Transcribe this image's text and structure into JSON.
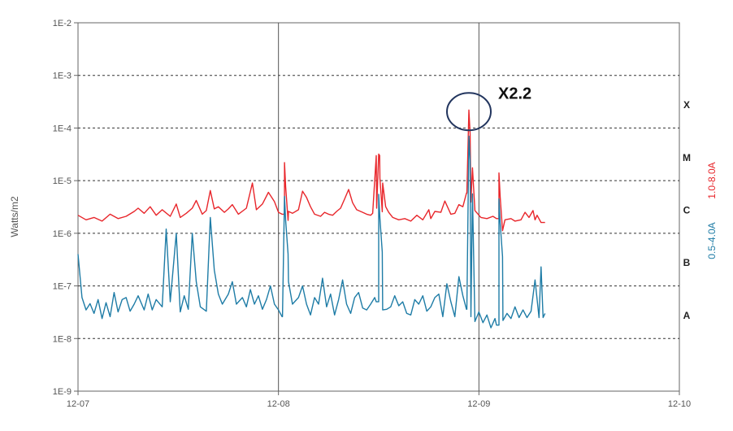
{
  "chart_data": {
    "type": "line",
    "ylabel": "Watts/m2",
    "yscale": "log",
    "ylim": [
      1e-09,
      0.01
    ],
    "y_tick_labels": [
      "1E-9",
      "1E-8",
      "1E-7",
      "1E-6",
      "1E-5",
      "1E-4",
      "1E-3",
      "1E-2"
    ],
    "xlim": [
      "12-07",
      "12-10"
    ],
    "x_tick_labels": [
      "12-07",
      "12-08",
      "12-09",
      "12-10"
    ],
    "grid": {
      "horizontal": "dashed",
      "vertical": "solid at day boundaries"
    },
    "flare_classes": [
      {
        "label": "X",
        "level": 0.0001
      },
      {
        "label": "M",
        "level": 1e-05
      },
      {
        "label": "C",
        "level": 1e-06
      },
      {
        "label": "B",
        "level": 1e-07
      },
      {
        "label": "A",
        "level": 1e-08
      }
    ],
    "series": [
      {
        "name": "1.0-8.0A",
        "color": "#e8262b",
        "x_unit": "days since 12-07 00:00",
        "points": [
          [
            0.0,
            2.2e-06
          ],
          [
            0.04,
            1.8e-06
          ],
          [
            0.08,
            2e-06
          ],
          [
            0.12,
            1.7e-06
          ],
          [
            0.16,
            2.3e-06
          ],
          [
            0.2,
            1.9e-06
          ],
          [
            0.24,
            2.1e-06
          ],
          [
            0.28,
            2.6e-06
          ],
          [
            0.3,
            3e-06
          ],
          [
            0.33,
            2.4e-06
          ],
          [
            0.36,
            3.2e-06
          ],
          [
            0.39,
            2.2e-06
          ],
          [
            0.42,
            2.8e-06
          ],
          [
            0.46,
            2.1e-06
          ],
          [
            0.49,
            3.6e-06
          ],
          [
            0.51,
            2e-06
          ],
          [
            0.54,
            2.4e-06
          ],
          [
            0.57,
            3e-06
          ],
          [
            0.59,
            4.2e-06
          ],
          [
            0.62,
            2.3e-06
          ],
          [
            0.64,
            2.7e-06
          ],
          [
            0.66,
            6.5e-06
          ],
          [
            0.68,
            2.9e-06
          ],
          [
            0.7,
            3.2e-06
          ],
          [
            0.73,
            2.5e-06
          ],
          [
            0.75,
            2.9e-06
          ],
          [
            0.77,
            3.5e-06
          ],
          [
            0.8,
            2.3e-06
          ],
          [
            0.84,
            3e-06
          ],
          [
            0.87,
            9e-06
          ],
          [
            0.89,
            2.8e-06
          ],
          [
            0.92,
            3.6e-06
          ],
          [
            0.95,
            6e-06
          ],
          [
            0.98,
            4e-06
          ],
          [
            1.0,
            2.5e-06
          ],
          [
            1.03,
            2.3e-06
          ],
          [
            1.05,
            2.6e-06
          ],
          [
            1.07,
            2.4e-06
          ],
          [
            1.1,
            2.8e-06
          ],
          [
            1.12,
            6.3e-06
          ],
          [
            1.14,
            4.8e-06
          ],
          [
            1.16,
            3.2e-06
          ],
          [
            1.18,
            2.3e-06
          ],
          [
            1.21,
            2.1e-06
          ],
          [
            1.23,
            2.5e-06
          ],
          [
            1.25,
            2.3e-06
          ],
          [
            1.27,
            2.2e-06
          ],
          [
            1.29,
            2.6e-06
          ],
          [
            1.31,
            3e-06
          ],
          [
            1.33,
            4.5e-06
          ],
          [
            1.35,
            6.8e-06
          ],
          [
            1.37,
            3.8e-06
          ],
          [
            1.39,
            2.8e-06
          ],
          [
            1.42,
            2.5e-06
          ],
          [
            1.44,
            2.3e-06
          ],
          [
            1.46,
            2.2e-06
          ],
          [
            1.47,
            2.4e-06
          ],
          [
            1.49,
            3e-06
          ],
          [
            1.505,
            3e-05
          ],
          [
            1.52,
            9e-06
          ],
          [
            1.535,
            3.2e-06
          ],
          [
            1.55,
            2.5e-06
          ],
          [
            1.57,
            2e-06
          ],
          [
            1.6,
            1.8e-06
          ],
          [
            1.63,
            1.9e-06
          ],
          [
            1.66,
            1.7e-06
          ],
          [
            1.69,
            2.2e-06
          ],
          [
            1.72,
            1.8e-06
          ],
          [
            1.75,
            2.8e-06
          ],
          [
            1.76,
            1.9e-06
          ],
          [
            1.78,
            2.6e-06
          ],
          [
            1.81,
            2.5e-06
          ],
          [
            1.83,
            4.1e-06
          ],
          [
            1.86,
            2.3e-06
          ],
          [
            1.88,
            2.4e-06
          ],
          [
            1.9,
            3.5e-06
          ],
          [
            1.92,
            3.2e-06
          ],
          [
            1.94,
            5.8e-06
          ],
          [
            1.96,
            3.9e-06
          ],
          [
            1.98,
            2.7e-06
          ],
          [
            2.01,
            2e-06
          ],
          [
            2.04,
            1.9e-06
          ],
          [
            2.07,
            2.1e-06
          ],
          [
            2.1,
            1.9e-06
          ],
          [
            2.13,
            1.8e-06
          ],
          [
            2.16,
            1.9e-06
          ],
          [
            2.18,
            1.7e-06
          ],
          [
            2.21,
            1.8e-06
          ],
          [
            2.23,
            2.5e-06
          ],
          [
            2.25,
            2e-06
          ],
          [
            2.27,
            2.7e-06
          ],
          [
            2.28,
            1.8e-06
          ],
          [
            2.29,
            2.2e-06
          ],
          [
            2.31,
            1.6e-06
          ],
          [
            2.33,
            1.6e-06
          ]
        ],
        "spikes": [
          {
            "x": 1.03,
            "peak": 2.2e-05
          },
          {
            "x": 1.5,
            "peak": 3.2e-05
          },
          {
            "x": 1.95,
            "peak": 0.00022
          },
          {
            "x": 2.1,
            "peak": 1.4e-05
          }
        ]
      },
      {
        "name": "0.5-4.0A",
        "color": "#1e7ca6",
        "x_unit": "days since 12-07 00:00",
        "points": [
          [
            0.0,
            4e-07
          ],
          [
            0.02,
            6e-08
          ],
          [
            0.04,
            3.5e-08
          ],
          [
            0.06,
            4.6e-08
          ],
          [
            0.08,
            3e-08
          ],
          [
            0.1,
            5.5e-08
          ],
          [
            0.12,
            2.4e-08
          ],
          [
            0.14,
            4.8e-08
          ],
          [
            0.16,
            2.6e-08
          ],
          [
            0.18,
            7.5e-08
          ],
          [
            0.2,
            3.2e-08
          ],
          [
            0.22,
            5.5e-08
          ],
          [
            0.24,
            6e-08
          ],
          [
            0.26,
            3.3e-08
          ],
          [
            0.28,
            4.5e-08
          ],
          [
            0.3,
            6.5e-08
          ],
          [
            0.33,
            3.5e-08
          ],
          [
            0.35,
            7e-08
          ],
          [
            0.37,
            3.5e-08
          ],
          [
            0.39,
            5.5e-08
          ],
          [
            0.42,
            4e-08
          ],
          [
            0.44,
            1.2e-06
          ],
          [
            0.46,
            5e-08
          ],
          [
            0.49,
            1e-06
          ],
          [
            0.51,
            3.2e-08
          ],
          [
            0.53,
            6.5e-08
          ],
          [
            0.55,
            3.6e-08
          ],
          [
            0.57,
            1e-06
          ],
          [
            0.59,
            1.2e-07
          ],
          [
            0.61,
            4e-08
          ],
          [
            0.64,
            3.3e-08
          ],
          [
            0.66,
            2e-06
          ],
          [
            0.68,
            2e-07
          ],
          [
            0.7,
            7e-08
          ],
          [
            0.72,
            4.5e-08
          ],
          [
            0.75,
            7e-08
          ],
          [
            0.77,
            1.2e-07
          ],
          [
            0.79,
            4.5e-08
          ],
          [
            0.82,
            6e-08
          ],
          [
            0.84,
            4e-08
          ],
          [
            0.86,
            8.5e-08
          ],
          [
            0.88,
            4.5e-08
          ],
          [
            0.9,
            6.5e-08
          ],
          [
            0.92,
            3.6e-08
          ],
          [
            0.94,
            5.5e-08
          ],
          [
            0.96,
            1e-07
          ],
          [
            0.98,
            4.5e-08
          ],
          [
            1.0,
            3.5e-08
          ],
          [
            1.02,
            2.6e-08
          ],
          [
            1.05,
            1.2e-07
          ],
          [
            1.07,
            4.5e-08
          ],
          [
            1.1,
            6e-08
          ],
          [
            1.12,
            1e-07
          ],
          [
            1.14,
            4.5e-08
          ],
          [
            1.16,
            2.8e-08
          ],
          [
            1.18,
            6e-08
          ],
          [
            1.2,
            4.5e-08
          ],
          [
            1.22,
            1.4e-07
          ],
          [
            1.24,
            4e-08
          ],
          [
            1.26,
            7e-08
          ],
          [
            1.28,
            2.8e-08
          ],
          [
            1.3,
            5.5e-08
          ],
          [
            1.32,
            1.3e-07
          ],
          [
            1.34,
            4.5e-08
          ],
          [
            1.36,
            3e-08
          ],
          [
            1.38,
            6e-08
          ],
          [
            1.4,
            7.5e-08
          ],
          [
            1.42,
            3.8e-08
          ],
          [
            1.44,
            3.5e-08
          ],
          [
            1.46,
            4.5e-08
          ],
          [
            1.48,
            6e-08
          ],
          [
            1.5,
            5e-08
          ],
          [
            1.52,
            3.5e-08
          ],
          [
            1.54,
            3.6e-08
          ],
          [
            1.56,
            4e-08
          ],
          [
            1.58,
            6.5e-08
          ],
          [
            1.6,
            4.2e-08
          ],
          [
            1.62,
            5e-08
          ],
          [
            1.64,
            3e-08
          ],
          [
            1.66,
            2.8e-08
          ],
          [
            1.68,
            5.5e-08
          ],
          [
            1.7,
            4.5e-08
          ],
          [
            1.72,
            6.5e-08
          ],
          [
            1.74,
            3.3e-08
          ],
          [
            1.76,
            4e-08
          ],
          [
            1.78,
            6e-08
          ],
          [
            1.8,
            7e-08
          ],
          [
            1.82,
            2.6e-08
          ],
          [
            1.84,
            1.1e-07
          ],
          [
            1.86,
            5e-08
          ],
          [
            1.88,
            2.6e-08
          ],
          [
            1.9,
            1.5e-07
          ],
          [
            1.92,
            6.5e-08
          ],
          [
            1.94,
            3.6e-08
          ],
          [
            1.96,
            2.6e-08
          ],
          [
            1.98,
            2.1e-08
          ],
          [
            2.0,
            3.2e-08
          ],
          [
            2.02,
            2e-08
          ],
          [
            2.04,
            2.8e-08
          ],
          [
            2.06,
            1.6e-08
          ],
          [
            2.08,
            2.4e-08
          ],
          [
            2.1,
            1.8e-08
          ],
          [
            2.12,
            2.2e-08
          ],
          [
            2.14,
            3e-08
          ],
          [
            2.16,
            2.4e-08
          ],
          [
            2.18,
            4e-08
          ],
          [
            2.2,
            2.5e-08
          ],
          [
            2.22,
            3.5e-08
          ],
          [
            2.24,
            2.5e-08
          ],
          [
            2.26,
            3.3e-08
          ],
          [
            2.28,
            1.3e-07
          ],
          [
            2.3,
            2.5e-08
          ],
          [
            2.31,
            2.3e-07
          ],
          [
            2.32,
            2.5e-08
          ],
          [
            2.33,
            3e-08
          ]
        ],
        "spikes": [
          {
            "x": 1.03,
            "peak": 5e-06
          },
          {
            "x": 1.5,
            "peak": 5.5e-06
          },
          {
            "x": 1.95,
            "peak": 7e-05
          },
          {
            "x": 2.1,
            "peak": 4.5e-06
          }
        ]
      }
    ],
    "annotations": [
      {
        "text": "X2.2",
        "shape": "ellipse",
        "x": 1.95,
        "y": 0.00022
      }
    ]
  }
}
